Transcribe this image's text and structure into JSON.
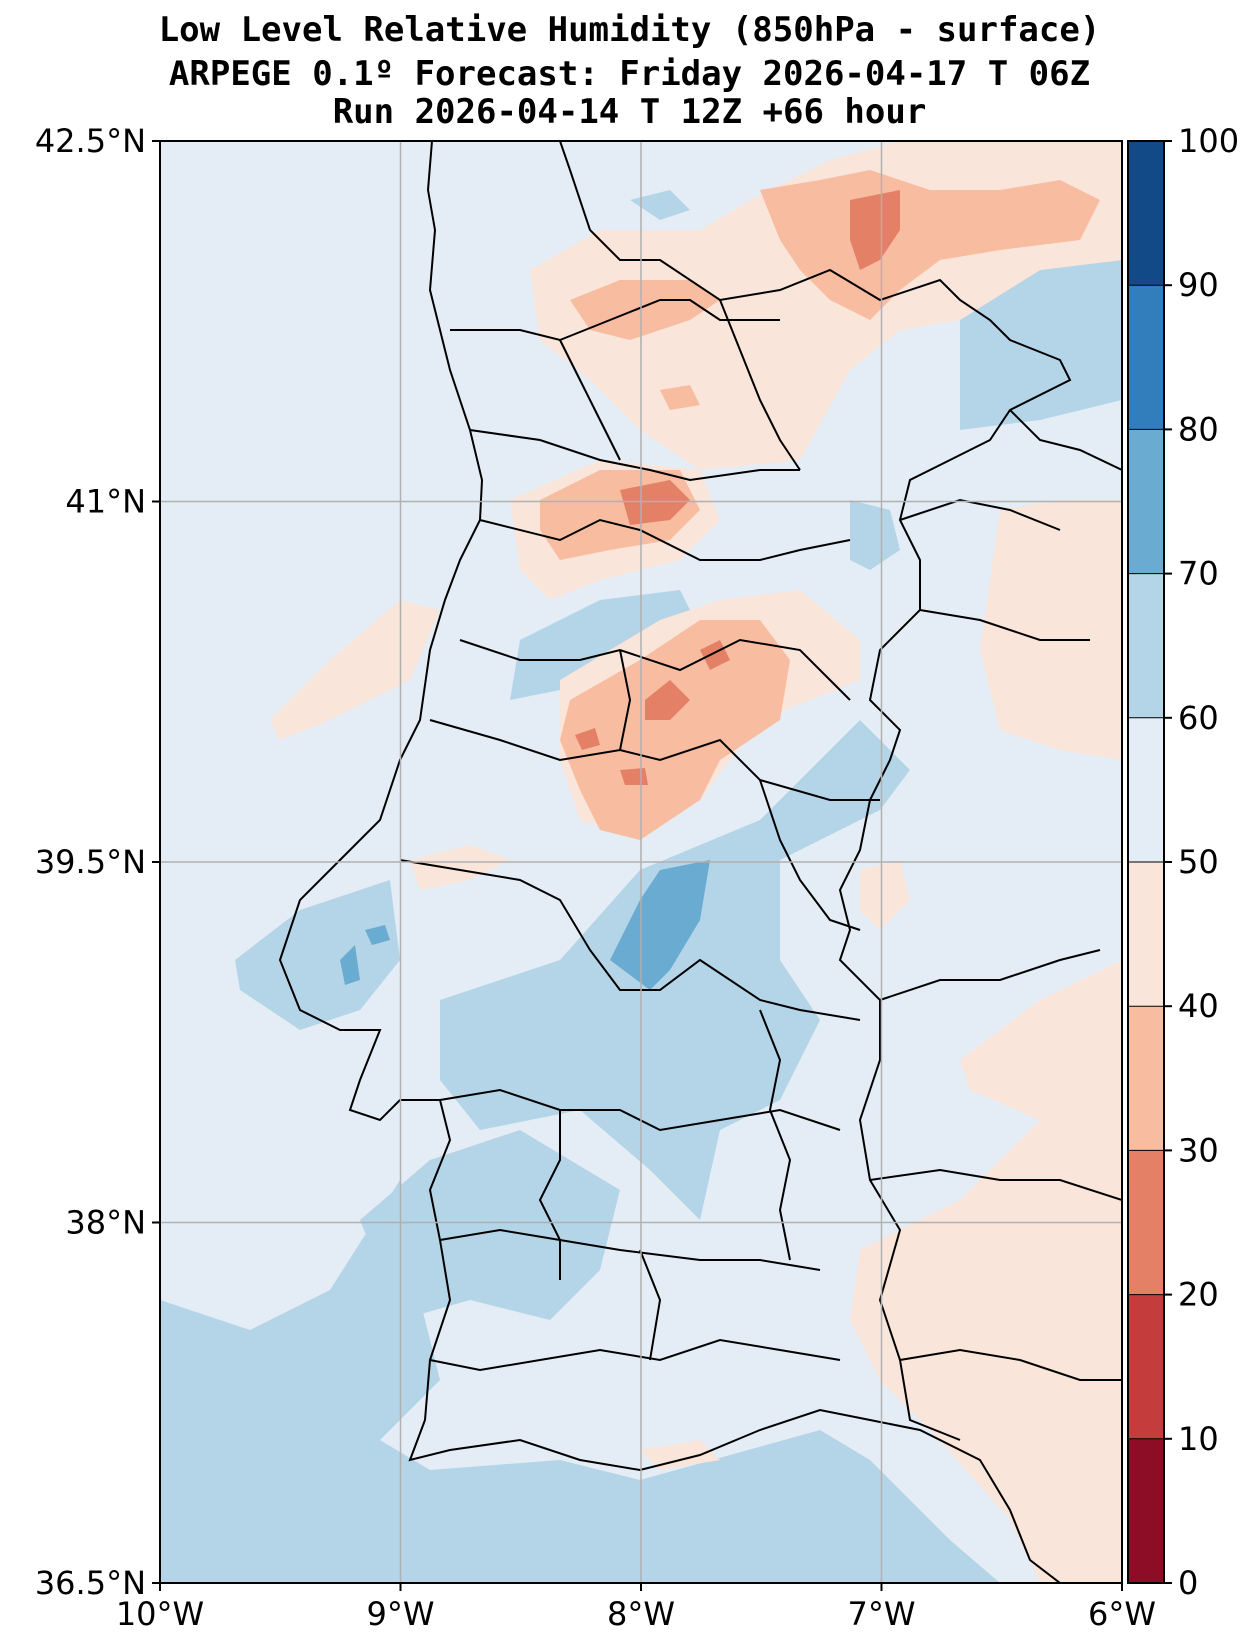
{
  "title": {
    "line1": "Low Level Relative Humidity (850hPa - surface)",
    "line2": "ARPEGE 0.1º Forecast: Friday 2026-04-17 T 06Z",
    "line3": "Run 2026-04-14 T 12Z +66 hour"
  },
  "map": {
    "lon_range": [
      -10,
      -6
    ],
    "lat_range": [
      36.5,
      42.5
    ],
    "x_ticks": [
      {
        "value": -10,
        "label": "10°W"
      },
      {
        "value": -9,
        "label": "9°W"
      },
      {
        "value": -8,
        "label": "8°W"
      },
      {
        "value": -7,
        "label": "7°W"
      },
      {
        "value": -6,
        "label": "6°W"
      }
    ],
    "y_ticks": [
      {
        "value": 42.5,
        "label": "42.5°N"
      },
      {
        "value": 41,
        "label": "41°N"
      },
      {
        "value": 39.5,
        "label": "39.5°N"
      },
      {
        "value": 38,
        "label": "38°N"
      },
      {
        "value": 36.5,
        "label": "36.5°N"
      }
    ],
    "background_class_color": "#e4edf5"
  },
  "colorbar": {
    "levels": [
      0,
      10,
      20,
      30,
      40,
      50,
      60,
      70,
      80,
      90,
      100
    ],
    "labels": [
      "0",
      "10",
      "20",
      "30",
      "40",
      "50",
      "60",
      "70",
      "80",
      "90",
      "100"
    ],
    "colors": [
      "#8c0d25",
      "#c43c3c",
      "#e48066",
      "#f8bca0",
      "#f9e5da",
      "#e4edf5",
      "#b4d4e7",
      "#6aabd2",
      "#327dbb",
      "#124a87"
    ]
  }
}
